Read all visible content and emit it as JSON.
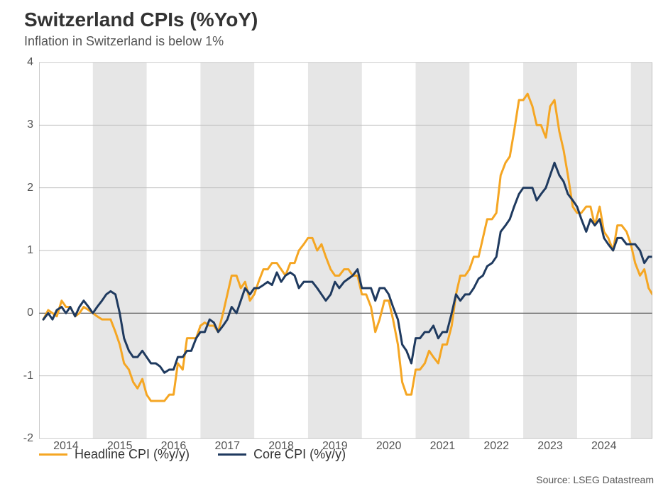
{
  "title": "Switzerland CPIs (%YoY)",
  "subtitle": "Inflation in Switzerland is below 1%",
  "source": "Source: LSEG Datastream",
  "chart": {
    "type": "line",
    "background_color": "#ffffff",
    "band_color": "#e6e6e6",
    "grid_color": "#bfbfbf",
    "zero_line_color": "#555555",
    "border_color": "#999999",
    "title_fontsize": 28,
    "subtitle_fontsize": 18,
    "tick_fontsize": 16,
    "legend_fontsize": 18,
    "source_fontsize": 14,
    "text_color": "#333333",
    "muted_text_color": "#555555",
    "line_width": 3,
    "ylim": [
      -2,
      4
    ],
    "ytick_step": 1,
    "x_start_year": 2013.5,
    "x_end_year": 2024.9,
    "xtick_years": [
      2014,
      2015,
      2016,
      2017,
      2018,
      2019,
      2020,
      2021,
      2022,
      2023,
      2024
    ],
    "yticks": [
      -2,
      -1,
      0,
      1,
      2,
      3,
      4
    ],
    "band_start_years": [
      2014.5,
      2016.5,
      2018.5,
      2020.5,
      2022.5,
      2024.5
    ],
    "band_end_years": [
      2015.5,
      2017.5,
      2019.5,
      2021.5,
      2023.5,
      2024.9
    ],
    "series": [
      {
        "name": "Headline CPI (%y/y)",
        "color": "#f5a623",
        "points": [
          [
            2013.58,
            -0.1
          ],
          [
            2013.67,
            0.05
          ],
          [
            2013.75,
            0.0
          ],
          [
            2013.83,
            -0.05
          ],
          [
            2013.92,
            0.2
          ],
          [
            2014.0,
            0.1
          ],
          [
            2014.08,
            0.1
          ],
          [
            2014.17,
            -0.05
          ],
          [
            2014.25,
            0.0
          ],
          [
            2014.33,
            0.1
          ],
          [
            2014.42,
            0.05
          ],
          [
            2014.5,
            0.0
          ],
          [
            2014.58,
            -0.05
          ],
          [
            2014.67,
            -0.1
          ],
          [
            2014.75,
            -0.1
          ],
          [
            2014.83,
            -0.1
          ],
          [
            2014.92,
            -0.3
          ],
          [
            2015.0,
            -0.5
          ],
          [
            2015.08,
            -0.8
          ],
          [
            2015.17,
            -0.9
          ],
          [
            2015.25,
            -1.1
          ],
          [
            2015.33,
            -1.2
          ],
          [
            2015.42,
            -1.05
          ],
          [
            2015.5,
            -1.3
          ],
          [
            2015.58,
            -1.4
          ],
          [
            2015.67,
            -1.4
          ],
          [
            2015.75,
            -1.4
          ],
          [
            2015.83,
            -1.4
          ],
          [
            2015.92,
            -1.3
          ],
          [
            2016.0,
            -1.3
          ],
          [
            2016.08,
            -0.8
          ],
          [
            2016.17,
            -0.9
          ],
          [
            2016.25,
            -0.4
          ],
          [
            2016.33,
            -0.4
          ],
          [
            2016.42,
            -0.4
          ],
          [
            2016.5,
            -0.2
          ],
          [
            2016.58,
            -0.15
          ],
          [
            2016.67,
            -0.2
          ],
          [
            2016.75,
            -0.2
          ],
          [
            2016.83,
            -0.3
          ],
          [
            2016.92,
            0.0
          ],
          [
            2017.0,
            0.3
          ],
          [
            2017.08,
            0.6
          ],
          [
            2017.17,
            0.6
          ],
          [
            2017.25,
            0.4
          ],
          [
            2017.33,
            0.5
          ],
          [
            2017.42,
            0.2
          ],
          [
            2017.5,
            0.3
          ],
          [
            2017.58,
            0.5
          ],
          [
            2017.67,
            0.7
          ],
          [
            2017.75,
            0.7
          ],
          [
            2017.83,
            0.8
          ],
          [
            2017.92,
            0.8
          ],
          [
            2018.0,
            0.7
          ],
          [
            2018.08,
            0.6
          ],
          [
            2018.17,
            0.8
          ],
          [
            2018.25,
            0.8
          ],
          [
            2018.33,
            1.0
          ],
          [
            2018.42,
            1.1
          ],
          [
            2018.5,
            1.2
          ],
          [
            2018.58,
            1.2
          ],
          [
            2018.67,
            1.0
          ],
          [
            2018.75,
            1.1
          ],
          [
            2018.83,
            0.9
          ],
          [
            2018.92,
            0.7
          ],
          [
            2019.0,
            0.6
          ],
          [
            2019.08,
            0.6
          ],
          [
            2019.17,
            0.7
          ],
          [
            2019.25,
            0.7
          ],
          [
            2019.33,
            0.6
          ],
          [
            2019.42,
            0.6
          ],
          [
            2019.5,
            0.3
          ],
          [
            2019.58,
            0.3
          ],
          [
            2019.67,
            0.1
          ],
          [
            2019.75,
            -0.3
          ],
          [
            2019.83,
            -0.1
          ],
          [
            2019.92,
            0.2
          ],
          [
            2020.0,
            0.2
          ],
          [
            2020.08,
            -0.1
          ],
          [
            2020.17,
            -0.5
          ],
          [
            2020.25,
            -1.1
          ],
          [
            2020.33,
            -1.3
          ],
          [
            2020.42,
            -1.3
          ],
          [
            2020.5,
            -0.9
          ],
          [
            2020.58,
            -0.9
          ],
          [
            2020.67,
            -0.8
          ],
          [
            2020.75,
            -0.6
          ],
          [
            2020.83,
            -0.7
          ],
          [
            2020.92,
            -0.8
          ],
          [
            2021.0,
            -0.5
          ],
          [
            2021.08,
            -0.5
          ],
          [
            2021.17,
            -0.2
          ],
          [
            2021.25,
            0.3
          ],
          [
            2021.33,
            0.6
          ],
          [
            2021.42,
            0.6
          ],
          [
            2021.5,
            0.7
          ],
          [
            2021.58,
            0.9
          ],
          [
            2021.67,
            0.9
          ],
          [
            2021.75,
            1.2
          ],
          [
            2021.83,
            1.5
          ],
          [
            2021.92,
            1.5
          ],
          [
            2022.0,
            1.6
          ],
          [
            2022.08,
            2.2
          ],
          [
            2022.17,
            2.4
          ],
          [
            2022.25,
            2.5
          ],
          [
            2022.33,
            2.9
          ],
          [
            2022.42,
            3.4
          ],
          [
            2022.5,
            3.4
          ],
          [
            2022.58,
            3.5
          ],
          [
            2022.67,
            3.3
          ],
          [
            2022.75,
            3.0
          ],
          [
            2022.83,
            3.0
          ],
          [
            2022.92,
            2.8
          ],
          [
            2023.0,
            3.3
          ],
          [
            2023.08,
            3.4
          ],
          [
            2023.17,
            2.9
          ],
          [
            2023.25,
            2.6
          ],
          [
            2023.33,
            2.2
          ],
          [
            2023.42,
            1.7
          ],
          [
            2023.5,
            1.6
          ],
          [
            2023.58,
            1.6
          ],
          [
            2023.67,
            1.7
          ],
          [
            2023.75,
            1.7
          ],
          [
            2023.83,
            1.4
          ],
          [
            2023.92,
            1.7
          ],
          [
            2024.0,
            1.3
          ],
          [
            2024.08,
            1.2
          ],
          [
            2024.17,
            1.0
          ],
          [
            2024.25,
            1.4
          ],
          [
            2024.33,
            1.4
          ],
          [
            2024.42,
            1.3
          ],
          [
            2024.5,
            1.1
          ],
          [
            2024.58,
            0.8
          ],
          [
            2024.67,
            0.6
          ],
          [
            2024.75,
            0.7
          ],
          [
            2024.83,
            0.4
          ],
          [
            2024.9,
            0.3
          ]
        ]
      },
      {
        "name": "Core CPI (%y/y)",
        "color": "#1f3a5f",
        "points": [
          [
            2013.58,
            -0.1
          ],
          [
            2013.67,
            0.0
          ],
          [
            2013.75,
            -0.1
          ],
          [
            2013.83,
            0.05
          ],
          [
            2013.92,
            0.1
          ],
          [
            2014.0,
            0.0
          ],
          [
            2014.08,
            0.1
          ],
          [
            2014.17,
            -0.05
          ],
          [
            2014.25,
            0.1
          ],
          [
            2014.33,
            0.2
          ],
          [
            2014.42,
            0.1
          ],
          [
            2014.5,
            0.0
          ],
          [
            2014.58,
            0.1
          ],
          [
            2014.67,
            0.2
          ],
          [
            2014.75,
            0.3
          ],
          [
            2014.83,
            0.35
          ],
          [
            2014.92,
            0.3
          ],
          [
            2015.0,
            0.0
          ],
          [
            2015.08,
            -0.4
          ],
          [
            2015.17,
            -0.6
          ],
          [
            2015.25,
            -0.7
          ],
          [
            2015.33,
            -0.7
          ],
          [
            2015.42,
            -0.6
          ],
          [
            2015.5,
            -0.7
          ],
          [
            2015.58,
            -0.8
          ],
          [
            2015.67,
            -0.8
          ],
          [
            2015.75,
            -0.85
          ],
          [
            2015.83,
            -0.95
          ],
          [
            2015.92,
            -0.9
          ],
          [
            2016.0,
            -0.9
          ],
          [
            2016.08,
            -0.7
          ],
          [
            2016.17,
            -0.7
          ],
          [
            2016.25,
            -0.6
          ],
          [
            2016.33,
            -0.6
          ],
          [
            2016.42,
            -0.4
          ],
          [
            2016.5,
            -0.3
          ],
          [
            2016.58,
            -0.3
          ],
          [
            2016.67,
            -0.1
          ],
          [
            2016.75,
            -0.15
          ],
          [
            2016.83,
            -0.3
          ],
          [
            2016.92,
            -0.2
          ],
          [
            2017.0,
            -0.1
          ],
          [
            2017.08,
            0.1
          ],
          [
            2017.17,
            0.0
          ],
          [
            2017.25,
            0.2
          ],
          [
            2017.33,
            0.4
          ],
          [
            2017.42,
            0.3
          ],
          [
            2017.5,
            0.4
          ],
          [
            2017.58,
            0.4
          ],
          [
            2017.67,
            0.45
          ],
          [
            2017.75,
            0.5
          ],
          [
            2017.83,
            0.45
          ],
          [
            2017.92,
            0.65
          ],
          [
            2018.0,
            0.5
          ],
          [
            2018.08,
            0.6
          ],
          [
            2018.17,
            0.65
          ],
          [
            2018.25,
            0.6
          ],
          [
            2018.33,
            0.4
          ],
          [
            2018.42,
            0.5
          ],
          [
            2018.5,
            0.5
          ],
          [
            2018.58,
            0.5
          ],
          [
            2018.67,
            0.4
          ],
          [
            2018.75,
            0.3
          ],
          [
            2018.83,
            0.2
          ],
          [
            2018.92,
            0.3
          ],
          [
            2019.0,
            0.5
          ],
          [
            2019.08,
            0.4
          ],
          [
            2019.17,
            0.5
          ],
          [
            2019.25,
            0.55
          ],
          [
            2019.33,
            0.6
          ],
          [
            2019.42,
            0.7
          ],
          [
            2019.5,
            0.4
          ],
          [
            2019.58,
            0.4
          ],
          [
            2019.67,
            0.4
          ],
          [
            2019.75,
            0.2
          ],
          [
            2019.83,
            0.4
          ],
          [
            2019.92,
            0.4
          ],
          [
            2020.0,
            0.3
          ],
          [
            2020.08,
            0.1
          ],
          [
            2020.17,
            -0.1
          ],
          [
            2020.25,
            -0.5
          ],
          [
            2020.33,
            -0.6
          ],
          [
            2020.42,
            -0.8
          ],
          [
            2020.5,
            -0.4
          ],
          [
            2020.58,
            -0.4
          ],
          [
            2020.67,
            -0.3
          ],
          [
            2020.75,
            -0.3
          ],
          [
            2020.83,
            -0.2
          ],
          [
            2020.92,
            -0.4
          ],
          [
            2021.0,
            -0.3
          ],
          [
            2021.08,
            -0.3
          ],
          [
            2021.17,
            0.0
          ],
          [
            2021.25,
            0.3
          ],
          [
            2021.33,
            0.2
          ],
          [
            2021.42,
            0.3
          ],
          [
            2021.5,
            0.3
          ],
          [
            2021.58,
            0.4
          ],
          [
            2021.67,
            0.55
          ],
          [
            2021.75,
            0.6
          ],
          [
            2021.83,
            0.75
          ],
          [
            2021.92,
            0.8
          ],
          [
            2022.0,
            0.9
          ],
          [
            2022.08,
            1.3
          ],
          [
            2022.17,
            1.4
          ],
          [
            2022.25,
            1.5
          ],
          [
            2022.33,
            1.7
          ],
          [
            2022.42,
            1.9
          ],
          [
            2022.5,
            2.0
          ],
          [
            2022.58,
            2.0
          ],
          [
            2022.67,
            2.0
          ],
          [
            2022.75,
            1.8
          ],
          [
            2022.83,
            1.9
          ],
          [
            2022.92,
            2.0
          ],
          [
            2023.0,
            2.2
          ],
          [
            2023.08,
            2.4
          ],
          [
            2023.17,
            2.2
          ],
          [
            2023.25,
            2.1
          ],
          [
            2023.33,
            1.9
          ],
          [
            2023.42,
            1.8
          ],
          [
            2023.5,
            1.7
          ],
          [
            2023.58,
            1.5
          ],
          [
            2023.67,
            1.3
          ],
          [
            2023.75,
            1.5
          ],
          [
            2023.83,
            1.4
          ],
          [
            2023.92,
            1.5
          ],
          [
            2024.0,
            1.2
          ],
          [
            2024.08,
            1.1
          ],
          [
            2024.17,
            1.0
          ],
          [
            2024.25,
            1.2
          ],
          [
            2024.33,
            1.2
          ],
          [
            2024.42,
            1.1
          ],
          [
            2024.5,
            1.1
          ],
          [
            2024.58,
            1.1
          ],
          [
            2024.67,
            1.0
          ],
          [
            2024.75,
            0.8
          ],
          [
            2024.83,
            0.9
          ],
          [
            2024.9,
            0.9
          ]
        ]
      }
    ]
  }
}
